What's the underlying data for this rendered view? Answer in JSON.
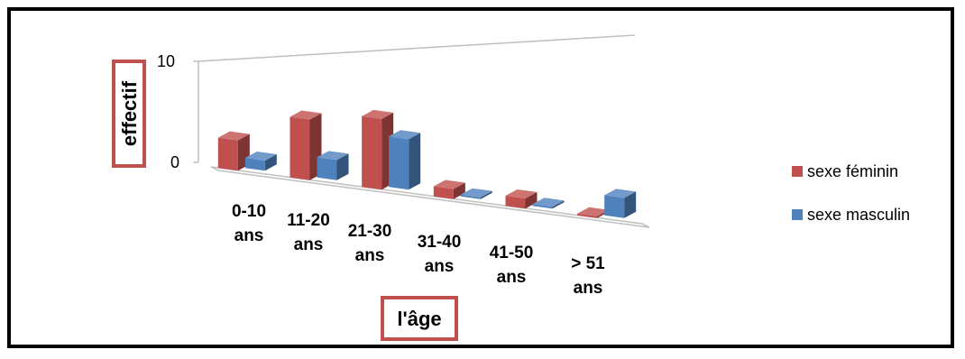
{
  "chart_data": {
    "type": "bar",
    "variant": "3d-clustered-column",
    "categories": [
      [
        "0-10",
        "ans"
      ],
      [
        "11-20",
        "ans"
      ],
      [
        "21-30",
        "ans"
      ],
      [
        "31-40",
        "ans"
      ],
      [
        "41-50",
        "ans"
      ],
      [
        "> 51",
        "ans"
      ]
    ],
    "series": [
      {
        "name": "sexe féminin",
        "values": [
          3,
          6,
          7,
          1,
          1,
          0
        ],
        "color": "#c0504d"
      },
      {
        "name": "sexe masculin",
        "values": [
          1,
          2,
          5,
          0,
          0,
          2
        ],
        "color": "#4f81bd"
      }
    ],
    "xlabel": "l'âge",
    "ylabel": "effectif",
    "ylim": [
      0,
      10
    ],
    "yticks": [
      "0",
      "10"
    ],
    "legend": "right",
    "grid": false,
    "title_box_color": "#c0504d"
  }
}
